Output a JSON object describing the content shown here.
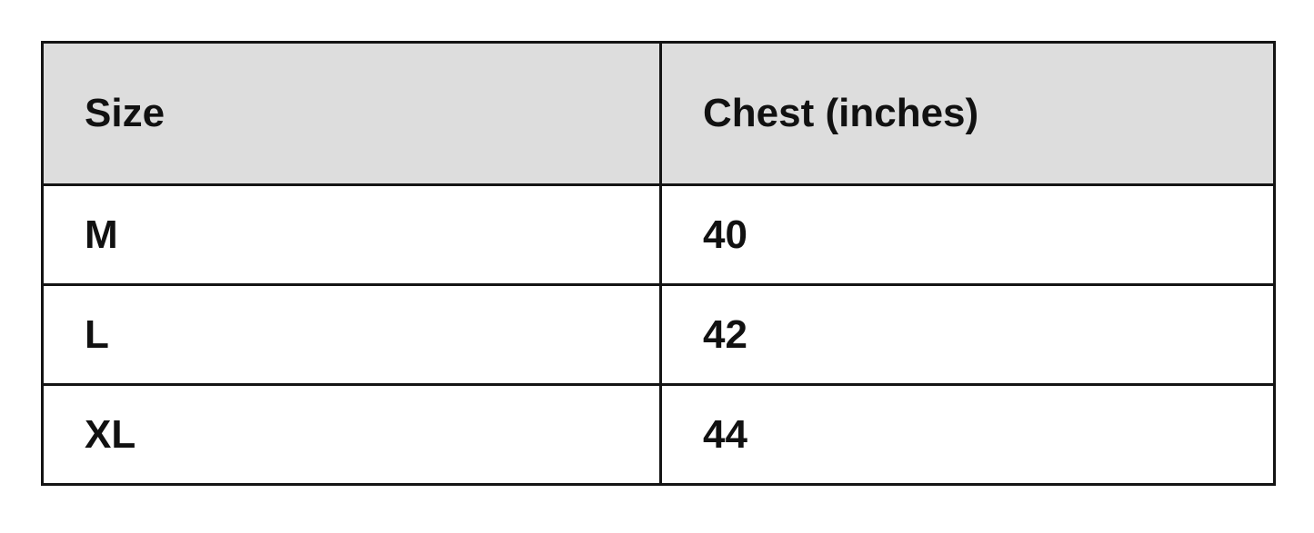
{
  "table": {
    "headers": [
      "Size",
      "Chest (inches)"
    ],
    "rows": [
      [
        "M",
        "40"
      ],
      [
        "L",
        "42"
      ],
      [
        "XL",
        "44"
      ]
    ]
  },
  "colors": {
    "header_bg": "#dddddd",
    "border": "#141414"
  }
}
